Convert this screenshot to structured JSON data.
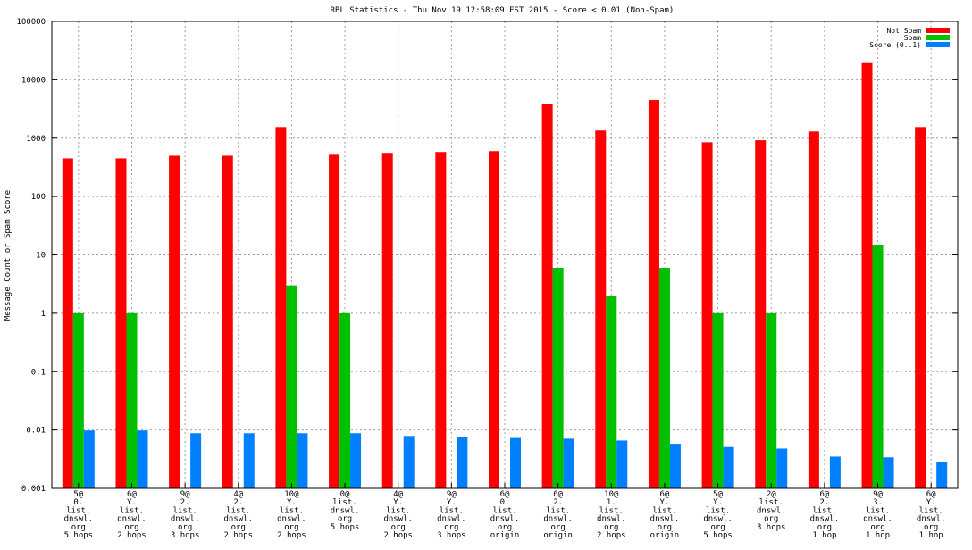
{
  "chart_data": {
    "type": "bar",
    "title": "RBL Statistics - Thu Nov 19 12:58:09 EST 2015 - Score < 0.01 (Non-Spam)",
    "ylabel": "Message Count or Spam Score",
    "xlabel": "",
    "yscale": "log",
    "ylim": [
      0.001,
      100000
    ],
    "ytick_labels": [
      "0.001",
      "0.01",
      "0.1",
      "1",
      "10",
      "100",
      "1000",
      "10000",
      "100000"
    ],
    "grid": true,
    "legend_position": "top-right",
    "categories": [
      [
        "5@",
        "0.",
        "list.",
        "dnswl.",
        "org",
        "5 hops"
      ],
      [
        "6@",
        "Y.",
        "list.",
        "dnswl.",
        "org",
        "2 hops"
      ],
      [
        "9@",
        "2.",
        "list.",
        "dnswl.",
        "org",
        "3 hops"
      ],
      [
        "4@",
        "2.",
        "list.",
        "dnswl.",
        "org",
        "2 hops"
      ],
      [
        "10@",
        "Y.",
        "list.",
        "dnswl.",
        "org",
        "2 hops"
      ],
      [
        "0@",
        "list.",
        "dnswl.",
        "org",
        "5 hops"
      ],
      [
        "4@",
        "Y.",
        "list.",
        "dnswl.",
        "org",
        "2 hops"
      ],
      [
        "9@",
        "Y.",
        "list.",
        "dnswl.",
        "org",
        "3 hops"
      ],
      [
        "6@",
        "0.",
        "list.",
        "dnswl.",
        "org",
        "origin"
      ],
      [
        "6@",
        "2.",
        "list.",
        "dnswl.",
        "org",
        "origin"
      ],
      [
        "10@",
        "1.",
        "list.",
        "dnswl.",
        "org",
        "2 hops"
      ],
      [
        "6@",
        "Y.",
        "list.",
        "dnswl.",
        "org",
        "origin"
      ],
      [
        "5@",
        "Y.",
        "list.",
        "dnswl.",
        "org",
        "5 hops"
      ],
      [
        "2@",
        "list.",
        "dnswl.",
        "org",
        "3 hops"
      ],
      [
        "6@",
        "2.",
        "list.",
        "dnswl.",
        "org",
        "1 hop"
      ],
      [
        "9@",
        "3.",
        "list.",
        "dnswl.",
        "org",
        "1 hop"
      ],
      [
        "6@",
        "Y.",
        "list.",
        "dnswl.",
        "org",
        "1 hop"
      ]
    ],
    "series": [
      {
        "name": "Not Spam",
        "color": "#ff0000",
        "values": [
          450,
          450,
          500,
          500,
          1550,
          520,
          560,
          580,
          600,
          3800,
          1350,
          4500,
          850,
          920,
          1300,
          20000,
          1550
        ]
      },
      {
        "name": "Spam",
        "color": "#00c000",
        "values": [
          1,
          1,
          null,
          null,
          3,
          1,
          null,
          null,
          null,
          6,
          2,
          6,
          1,
          1,
          null,
          15,
          null
        ]
      },
      {
        "name": "Score (0..1)",
        "color": "#0080ff",
        "values": [
          0.0098,
          0.0098,
          0.0088,
          0.0088,
          0.0088,
          0.0088,
          0.0079,
          0.0076,
          0.0073,
          0.0071,
          0.0066,
          0.0058,
          0.0051,
          0.0048,
          0.0035,
          0.0034,
          0.0028
        ]
      }
    ]
  }
}
